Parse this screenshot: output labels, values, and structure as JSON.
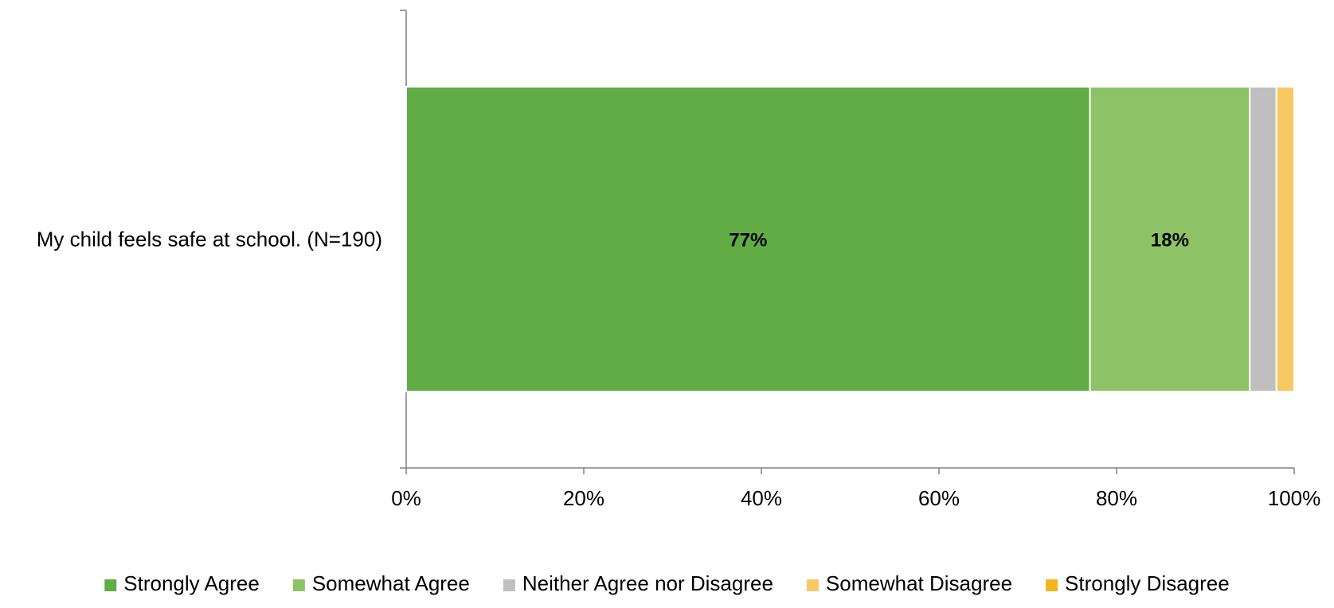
{
  "chart_data": {
    "type": "bar",
    "orientation": "horizontal",
    "stacked": true,
    "categories": [
      "My child feels safe at school. (N=190)"
    ],
    "series": [
      {
        "name": "Strongly Agree",
        "values": [
          77
        ],
        "color": "#62ac46",
        "label": "77%"
      },
      {
        "name": "Somewhat Agree",
        "values": [
          18
        ],
        "color": "#8dc366",
        "label": "18%"
      },
      {
        "name": "Neither Agree nor Disagree",
        "values": [
          3
        ],
        "color": "#bfbfbf",
        "label": ""
      },
      {
        "name": "Somewhat Disagree",
        "values": [
          2
        ],
        "color": "#f8c862",
        "label": ""
      },
      {
        "name": "Strongly Disagree",
        "values": [
          0
        ],
        "color": "#f3b51b",
        "label": ""
      }
    ],
    "xlim": [
      0,
      100
    ],
    "xticks": [
      "0%",
      "20%",
      "40%",
      "60%",
      "80%",
      "100%"
    ],
    "grid": false,
    "legend_position": "bottom"
  }
}
